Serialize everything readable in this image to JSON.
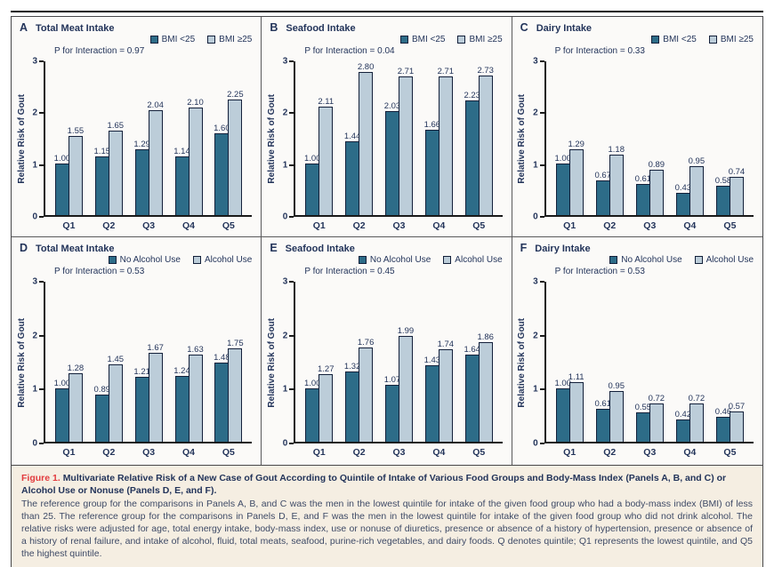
{
  "figure": {
    "caption_label": "Figure 1.",
    "caption_title": "Multivariate Relative Risk of a New Case of Gout According to Quintile of Intake of Various Food Groups and Body-Mass Index (Panels A, B, and C) or Alcohol Use or Nonuse (Panels D, E, and F).",
    "caption_body": "The reference group for the comparisons in Panels A, B, and C was the men in the lowest quintile for intake of the given food group who had a body-mass index (BMI) of less than 25. The reference group for the comparisons in Panels D, E, and F was the men in the lowest quintile for intake of the given food group who did not drink alcohol. The relative risks were adjusted for age, total energy intake, body-mass index, use or nonuse of diuretics, presence or absence of a history of hypertension, presence or absence of a history of renal failure, and intake of alcohol, fluid, total meats, seafood, purine-rich vegetables, and dairy foods. Q denotes quintile; Q1 represents the lowest quintile, and Q5 the highest quintile."
  },
  "colors": {
    "series1": "#2d6c88",
    "series2": "#bccdd9",
    "bar_outline": "#13203a",
    "text_navy": "#23345a",
    "figure_red": "#e23b3e",
    "caption_bg": "#f5eee2"
  },
  "chart_data": [
    {
      "type": "bar",
      "panel": "A",
      "title": "Total Meat Intake",
      "p_for_interaction": "P for Interaction = 0.97",
      "ylabel": "Relative Risk of Gout",
      "xlabel": "",
      "ylim": [
        0,
        3
      ],
      "yticks": [
        0,
        1,
        2,
        3
      ],
      "categories": [
        "Q1",
        "Q2",
        "Q3",
        "Q4",
        "Q5"
      ],
      "series": [
        {
          "name": "BMI <25",
          "values": [
            1.0,
            1.15,
            1.29,
            1.14,
            1.6
          ],
          "labels": [
            "1.00",
            "1.15",
            "1.29",
            "1.14",
            "1.60"
          ]
        },
        {
          "name": "BMI ≥25",
          "values": [
            1.55,
            1.65,
            2.04,
            2.1,
            2.25
          ],
          "labels": [
            "1.55",
            "1.65",
            "2.04",
            "2.10",
            "2.25"
          ]
        }
      ]
    },
    {
      "type": "bar",
      "panel": "B",
      "title": "Seafood Intake",
      "p_for_interaction": "P for Interaction = 0.04",
      "ylabel": "Relative Risk of Gout",
      "xlabel": "",
      "ylim": [
        0,
        3
      ],
      "yticks": [
        0,
        1,
        2,
        3
      ],
      "categories": [
        "Q1",
        "Q2",
        "Q3",
        "Q4",
        "Q5"
      ],
      "series": [
        {
          "name": "BMI <25",
          "values": [
            1.0,
            1.44,
            2.03,
            1.66,
            2.23
          ],
          "labels": [
            "1.00",
            "1.44",
            "2.03",
            "1.66",
            "2.23"
          ]
        },
        {
          "name": "BMI ≥25",
          "values": [
            2.11,
            2.8,
            2.71,
            2.71,
            2.73
          ],
          "labels": [
            "2.11",
            "2.80",
            "2.71",
            "2.71",
            "2.73"
          ]
        }
      ]
    },
    {
      "type": "bar",
      "panel": "C",
      "title": "Dairy Intake",
      "p_for_interaction": "P for Interaction = 0.33",
      "ylabel": "Relative Risk of Gout",
      "xlabel": "",
      "ylim": [
        0,
        3
      ],
      "yticks": [
        0,
        1,
        2,
        3
      ],
      "categories": [
        "Q1",
        "Q2",
        "Q3",
        "Q4",
        "Q5"
      ],
      "series": [
        {
          "name": "BMI <25",
          "values": [
            1.0,
            0.67,
            0.61,
            0.43,
            0.58
          ],
          "labels": [
            "1.00",
            "0.67",
            "0.61",
            "0.43",
            "0.58"
          ]
        },
        {
          "name": "BMI ≥25",
          "values": [
            1.29,
            1.18,
            0.89,
            0.95,
            0.74
          ],
          "labels": [
            "1.29",
            "1.18",
            "0.89",
            "0.95",
            "0.74"
          ]
        }
      ]
    },
    {
      "type": "bar",
      "panel": "D",
      "title": "Total Meat Intake",
      "p_for_interaction": "P for Interaction = 0.53",
      "ylabel": "Relative Risk of Gout",
      "xlabel": "",
      "ylim": [
        0,
        3
      ],
      "yticks": [
        0,
        1,
        2,
        3
      ],
      "categories": [
        "Q1",
        "Q2",
        "Q3",
        "Q4",
        "Q5"
      ],
      "series": [
        {
          "name": "No Alcohol Use",
          "values": [
            1.0,
            0.89,
            1.21,
            1.24,
            1.48
          ],
          "labels": [
            "1.00",
            "0.89",
            "1.21",
            "1.24",
            "1.48"
          ]
        },
        {
          "name": "Alcohol Use",
          "values": [
            1.28,
            1.45,
            1.67,
            1.63,
            1.75
          ],
          "labels": [
            "1.28",
            "1.45",
            "1.67",
            "1.63",
            "1.75"
          ]
        }
      ]
    },
    {
      "type": "bar",
      "panel": "E",
      "title": "Seafood Intake",
      "p_for_interaction": "P for Interaction = 0.45",
      "ylabel": "Relative Risk of Gout",
      "xlabel": "",
      "ylim": [
        0,
        3
      ],
      "yticks": [
        0,
        1,
        2,
        3
      ],
      "categories": [
        "Q1",
        "Q2",
        "Q3",
        "Q4",
        "Q5"
      ],
      "series": [
        {
          "name": "No Alcohol Use",
          "values": [
            1.0,
            1.32,
            1.07,
            1.43,
            1.64
          ],
          "labels": [
            "1.00",
            "1.32",
            "1.07",
            "1.43",
            "1.64"
          ]
        },
        {
          "name": "Alcohol Use",
          "values": [
            1.27,
            1.76,
            1.99,
            1.74,
            1.86
          ],
          "labels": [
            "1.27",
            "1.76",
            "1.99",
            "1.74",
            "1.86"
          ]
        }
      ]
    },
    {
      "type": "bar",
      "panel": "F",
      "title": "Dairy Intake",
      "p_for_interaction": "P for Interaction = 0.53",
      "ylabel": "Relative Risk of Gout",
      "xlabel": "",
      "ylim": [
        0,
        3
      ],
      "yticks": [
        0,
        1,
        2,
        3
      ],
      "categories": [
        "Q1",
        "Q2",
        "Q3",
        "Q4",
        "Q5"
      ],
      "series": [
        {
          "name": "No Alcohol Use",
          "values": [
            1.0,
            0.61,
            0.55,
            0.42,
            0.46
          ],
          "labels": [
            "1.00",
            "0.61",
            "0.55",
            "0.42",
            "0.46"
          ]
        },
        {
          "name": "Alcohol Use",
          "values": [
            1.11,
            0.95,
            0.72,
            0.72,
            0.57
          ],
          "labels": [
            "1.11",
            "0.95",
            "0.72",
            "0.72",
            "0.57"
          ]
        }
      ]
    }
  ],
  "taskbar": {
    "buttons": [
      {
        "name": "taskbar-button-1",
        "icon": "",
        "icon_color": ""
      },
      {
        "name": "taskbar-button-2",
        "icon": "app-icon-blue",
        "icon_color": "#58ade4"
      },
      {
        "name": "taskbar-button-3",
        "icon": "app-icon-green",
        "icon_color": "#2ec52e"
      },
      {
        "name": "taskbar-button-4",
        "icon": "app-icon-blue-2",
        "icon_color": "#54b7ea"
      },
      {
        "name": "taskbar-button-5",
        "icon": "app-icon-red",
        "icon_color": "#d5403d"
      }
    ]
  }
}
